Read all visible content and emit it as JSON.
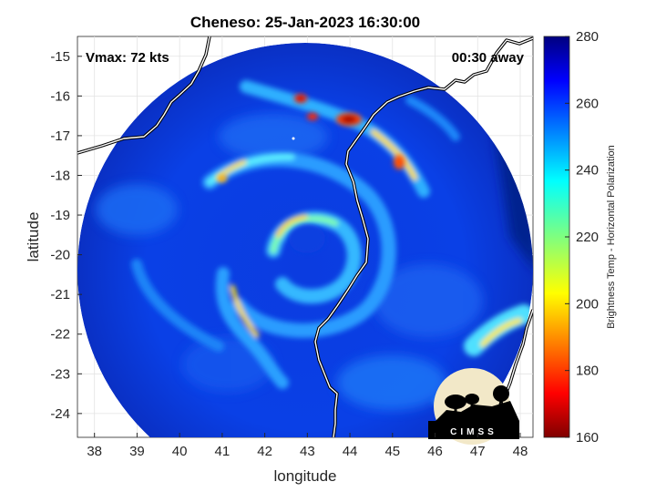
{
  "title": "Cheneso: 25-Jan-2023 16:30:00",
  "overlay": {
    "vmax": "Vmax: 72 kts",
    "away": "00:30 away"
  },
  "axes": {
    "xlabel": "longitude",
    "ylabel": "latitude",
    "xticks": [
      "38",
      "39",
      "40",
      "41",
      "42",
      "43",
      "44",
      "45",
      "46",
      "47",
      "48"
    ],
    "yticks": [
      "-15",
      "-16",
      "-17",
      "-18",
      "-19",
      "-20",
      "-21",
      "-22",
      "-23",
      "-24"
    ],
    "xrange": [
      37.6,
      48.3
    ],
    "yrange": [
      -24.6,
      -14.5
    ]
  },
  "colorbar": {
    "label": "Brightness Temp - Horizontal Polarization",
    "ticks": [
      "280",
      "260",
      "240",
      "220",
      "200",
      "180",
      "160"
    ],
    "range": [
      160,
      280
    ],
    "colormap": "jet"
  },
  "logo": {
    "text": "CIMSS"
  },
  "colors": {
    "cold_bg": "#0a2fd0",
    "ring_bright": "#34c3ff",
    "hot": "#ff2a00",
    "outer": "#00208f"
  }
}
